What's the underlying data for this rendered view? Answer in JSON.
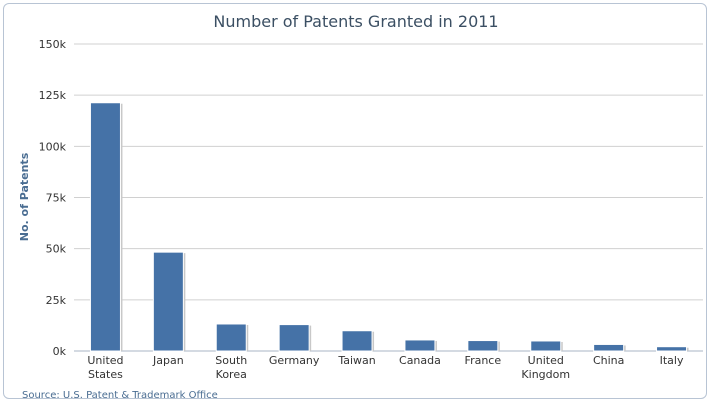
{
  "chart_data": {
    "type": "bar",
    "title": "Number of Patents Granted in 2011",
    "ylabel": "No. of Patents",
    "xlabel": "",
    "categories": [
      [
        "United",
        "States"
      ],
      [
        "Japan"
      ],
      [
        "South",
        "Korea"
      ],
      [
        "Germany"
      ],
      [
        "Taiwan"
      ],
      [
        "Canada"
      ],
      [
        "France"
      ],
      [
        "United",
        "Kingdom"
      ],
      [
        "China"
      ],
      [
        "Italy"
      ]
    ],
    "values": [
      121300,
      48300,
      13200,
      12900,
      9900,
      5400,
      5100,
      4900,
      3200,
      2100
    ],
    "ylim": [
      0,
      150000
    ],
    "yticks": [
      {
        "value": 0,
        "label": "0k"
      },
      {
        "value": 25000,
        "label": "25k"
      },
      {
        "value": 50000,
        "label": "50k"
      },
      {
        "value": 75000,
        "label": "75k"
      },
      {
        "value": 100000,
        "label": "100k"
      },
      {
        "value": 125000,
        "label": "125k"
      },
      {
        "value": 150000,
        "label": "150k"
      }
    ],
    "grid": true,
    "bar_color": "#4572a7",
    "credit": "Source: U.S. Patent & Trademark Office"
  }
}
